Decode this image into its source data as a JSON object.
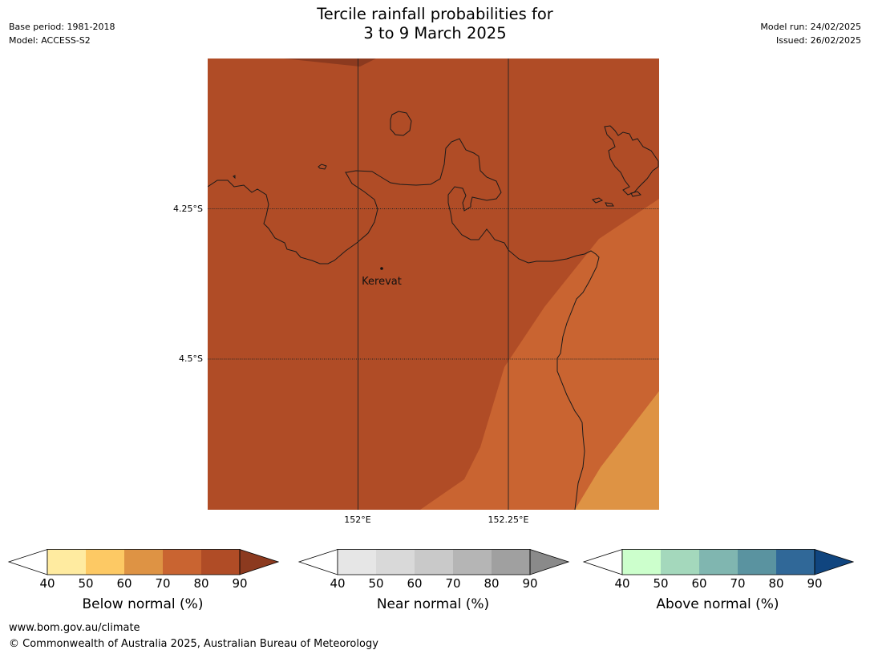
{
  "header": {
    "base_period": "Base period: 1981-2018",
    "model": "Model: ACCESS-S2",
    "title_line1": "Tercile rainfall probabilities for",
    "title_line2": "3 to 9 March 2025",
    "model_run": "Model run: 24/02/2025",
    "issued": "Issued: 26/02/2025"
  },
  "map": {
    "place_label": "Kerevat",
    "lat_labels": [
      "4.25°S",
      "4.5°S"
    ],
    "lon_labels": [
      "152°E",
      "152.25°E"
    ],
    "dominant_category": "Below normal",
    "region_colors": {
      "below_80_90": "#b04c26",
      "below_90_plus": "#8c3a1f",
      "below_70_80": "#c96431",
      "below_60_70": "#de9344"
    }
  },
  "colorbars": [
    {
      "label": "Below normal (%)",
      "ticks": [
        "40",
        "50",
        "60",
        "70",
        "80",
        "90"
      ],
      "colors": [
        "#ffffff",
        "#ffeba0",
        "#fdc964",
        "#de9344",
        "#c96431",
        "#b04c26",
        "#8c3a1f"
      ]
    },
    {
      "label": "Near normal (%)",
      "ticks": [
        "40",
        "50",
        "60",
        "70",
        "80",
        "90"
      ],
      "colors": [
        "#ffffff",
        "#e6e6e6",
        "#d9d9d9",
        "#c9c9c9",
        "#b5b5b5",
        "#a0a0a0",
        "#8a8a8a"
      ]
    },
    {
      "label": "Above normal (%)",
      "ticks": [
        "40",
        "50",
        "60",
        "70",
        "80",
        "90"
      ],
      "colors": [
        "#ffffff",
        "#ccffcc",
        "#a4d8bc",
        "#80b6b0",
        "#5a93a0",
        "#306898",
        "#10457f"
      ]
    }
  ],
  "footer": {
    "url": "www.bom.gov.au/climate",
    "copyright": "© Commonwealth of Australia 2025, Australian Bureau of Meteorology"
  }
}
